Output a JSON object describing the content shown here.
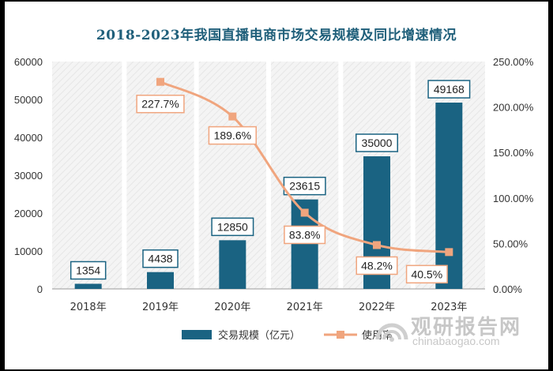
{
  "title": "2018-2023年我国直播电商市场交易规模及同比增速情况",
  "chart_data": {
    "type": "bar+line",
    "categories": [
      "2018年",
      "2019年",
      "2020年",
      "2021年",
      "2022年",
      "2023年"
    ],
    "series": [
      {
        "name": "交易规模（亿元）",
        "type": "bar",
        "axis": "left",
        "color": "#1a6382",
        "values": [
          1354,
          4438,
          12850,
          23615,
          35000,
          49168
        ],
        "labels": [
          "1354",
          "4438",
          "12850",
          "23615",
          "35000",
          "49168"
        ]
      },
      {
        "name": "使用率",
        "type": "line",
        "axis": "right",
        "color": "#f0a57e",
        "values": [
          null,
          227.7,
          189.6,
          83.8,
          48.2,
          40.5
        ],
        "labels": [
          "",
          "227.7%",
          "189.6%",
          "83.8%",
          "48.2%",
          "40.5%"
        ]
      }
    ],
    "y_left": {
      "min": 0,
      "max": 60000,
      "ticks": [
        "0",
        "10000",
        "20000",
        "30000",
        "40000",
        "50000",
        "60000"
      ]
    },
    "y_right": {
      "min": 0,
      "max": 250,
      "ticks": [
        "0.00%",
        "50.00%",
        "100.00%",
        "150.00%",
        "200.00%",
        "250.00%"
      ]
    },
    "legend_position": "bottom"
  },
  "watermark": {
    "brand": "观研报告网",
    "url": "chinabaogao.com"
  }
}
